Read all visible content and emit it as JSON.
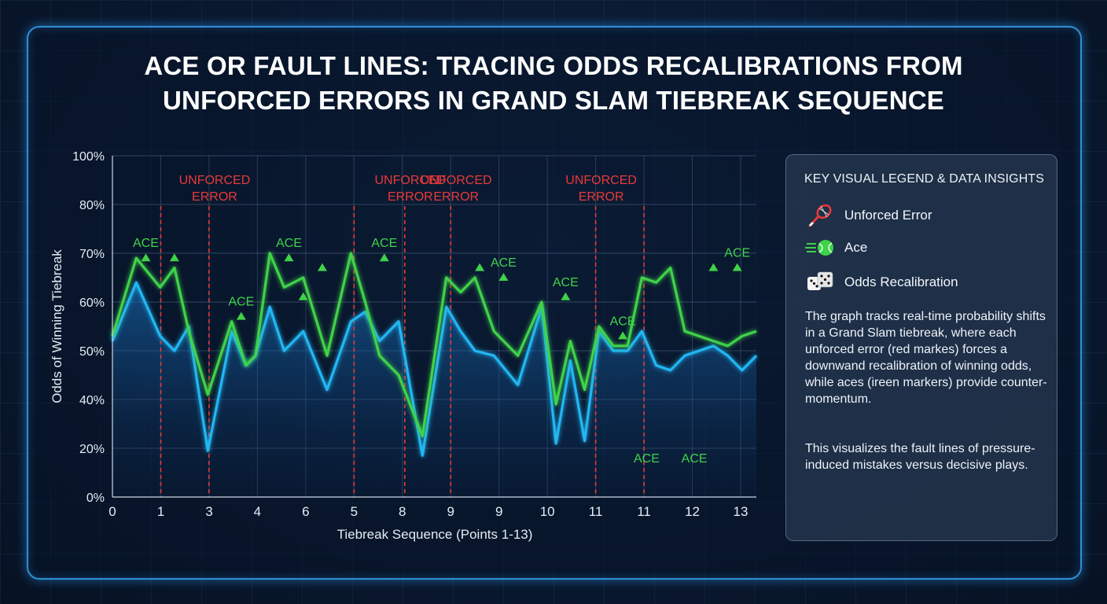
{
  "title_lines": [
    "ACE OR FAULT LINES: TRACING ODDS RECALIBRATIONS FROM",
    "UNFORCED ERRORS IN GRAND SLAM TIEBREAK SEQUENCE"
  ],
  "legend": {
    "title": "KEY VISUAL LEGEND & DATA INSIGHTS",
    "items": [
      {
        "label": "Unforced Error",
        "icon": "tennis-racket-icon",
        "color": "#e83a3a"
      },
      {
        "label": "Ace",
        "icon": "tennis-ball-icon",
        "color": "#3fd24a"
      },
      {
        "label": "Odds Recalibration",
        "icon": "dice-icon",
        "color": "#ffffff"
      }
    ],
    "description": "The graph tracks real-time probability shifts in a Grand Slam tiebreak, where each unforced error (red markes) forces a downwand recalibration of winning odds, while aces (ireen markers) provide counter-momentum.",
    "note": "This visualizes the fault lines of pressure-induced mistakes versus decisive plays."
  },
  "chart_data": {
    "type": "line",
    "xlabel": "Tiebreak Sequence (Points 1-13)",
    "ylabel": "Odds of Winning Tiebreak",
    "x_ticks": [
      "0",
      "1",
      "3",
      "4",
      "6",
      "5",
      "8",
      "9",
      "9",
      "10",
      "11",
      "11",
      "12",
      "13"
    ],
    "y_ticks": [
      "0%",
      "20%",
      "40%",
      "50%",
      "60%",
      "70%",
      "80%",
      "100%"
    ],
    "xlim": [
      0,
      13.5
    ],
    "colors": {
      "blue": "#23b6f2",
      "green": "#3fd24a",
      "error": "#e83a3a"
    },
    "series": [
      {
        "color": "#23b6f2",
        "x": [
          0,
          0.5,
          1,
          1.3,
          1.6,
          2,
          2.5,
          2.8,
          3,
          3.3,
          3.6,
          4,
          4.5,
          5,
          5.3,
          5.6,
          6,
          6.5,
          7,
          7.3,
          7.6,
          8,
          8.5,
          9,
          9.3,
          9.6,
          9.9,
          10.2,
          10.5,
          10.8,
          11.1,
          11.4,
          11.7,
          12,
          12.3,
          12.6,
          12.9,
          13.2,
          13.5
        ],
        "y": [
          52,
          64,
          53,
          50,
          55,
          19,
          54,
          47,
          49,
          59,
          50,
          54,
          42,
          56,
          58,
          52,
          56,
          17,
          59,
          54,
          50,
          49,
          43,
          59,
          22,
          48,
          23,
          54,
          50,
          50,
          54,
          47,
          46,
          49,
          50,
          51,
          49,
          46,
          49
        ]
      },
      {
        "color": "#3fd24a",
        "x": [
          0,
          0.5,
          1,
          1.3,
          1.6,
          2,
          2.5,
          2.8,
          3,
          3.3,
          3.6,
          4,
          4.5,
          5,
          5.3,
          5.6,
          6,
          6.5,
          7,
          7.3,
          7.6,
          8,
          8.5,
          9,
          9.3,
          9.6,
          9.9,
          10.2,
          10.5,
          10.8,
          11.1,
          11.4,
          11.7,
          12,
          12.3,
          12.6,
          12.9,
          13.2,
          13.5
        ],
        "y": [
          53,
          69,
          63,
          67,
          54,
          41,
          56,
          47,
          49,
          70,
          63,
          65,
          49,
          70,
          60,
          49,
          45,
          25,
          65,
          62,
          65,
          54,
          49,
          60,
          38,
          52,
          42,
          55,
          51,
          51,
          65,
          64,
          67,
          54,
          53,
          52,
          51,
          53,
          54
        ]
      }
    ],
    "error_lines_x": [
      1,
      2,
      5,
      6,
      7,
      11,
      12
    ],
    "error_labels": [
      {
        "x": 2,
        "text": "UNFORCED\nERROR"
      },
      {
        "x": 6,
        "text": "UNFORCED\nERROR"
      },
      {
        "x": 7,
        "text": "UNFORCED\nERROR"
      },
      {
        "x": 11,
        "text": "UNFORCED\nERROR"
      }
    ],
    "ace_markers": [
      {
        "x": 0.7,
        "y": 69,
        "text": "ACE"
      },
      {
        "x": 1.3,
        "y": 69,
        "text": ""
      },
      {
        "x": 2.7,
        "y": 57,
        "text": "ACE"
      },
      {
        "x": 3.7,
        "y": 69,
        "text": "ACE"
      },
      {
        "x": 4.0,
        "y": 61,
        "text": ""
      },
      {
        "x": 4.4,
        "y": 67,
        "text": ""
      },
      {
        "x": 5.7,
        "y": 69,
        "text": "ACE"
      },
      {
        "x": 7.7,
        "y": 67,
        "text": ""
      },
      {
        "x": 8.2,
        "y": 65,
        "text": "ACE"
      },
      {
        "x": 9.5,
        "y": 61,
        "text": "ACE"
      },
      {
        "x": 10.7,
        "y": 53,
        "text": "ACE"
      },
      {
        "x": 12.6,
        "y": 67,
        "text": ""
      },
      {
        "x": 13.1,
        "y": 67,
        "text": "ACE"
      }
    ],
    "ace_bottom_labels": [
      {
        "x": 11.2,
        "text": "ACE"
      },
      {
        "x": 12.2,
        "text": "ACE"
      }
    ]
  }
}
